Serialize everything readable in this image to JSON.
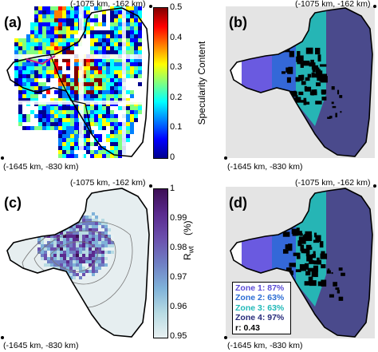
{
  "panels": {
    "a": {
      "label": "(a)",
      "top_coord": "(-1075 km, -162 km)",
      "bottom_coord": "(-1645 km, -830 km)"
    },
    "b": {
      "label": "(b)",
      "top_coord": "(-1075 km, -162 km)",
      "bottom_coord": "(-1645 km, -830 km)"
    },
    "c": {
      "label": "(c)",
      "top_coord": "(-1075 km, -162 km)",
      "bottom_coord": "(-1645 km, -830 km)"
    },
    "d": {
      "label": "(d)",
      "top_coord": "(-1075 km, -162 km)",
      "bottom_coord": "(-1645 km, -830 km)"
    }
  },
  "colorbar_specularity": {
    "title": "Specularity Content",
    "ticks": [
      "0.5",
      "0.4",
      "0.3",
      "0.2",
      "0.1",
      "0"
    ],
    "colormap": [
      "#00008f",
      "#0000ff",
      "#0080ff",
      "#00ffff",
      "#80ff80",
      "#ffff00",
      "#ff8000",
      "#ff0000",
      "#800000"
    ]
  },
  "colorbar_rwt": {
    "title_main": "R",
    "title_sub": "wt",
    "title_unit": "(%)",
    "ticks": [
      "1",
      "0.99",
      "0.98",
      "0.97",
      "0.96",
      "0.95"
    ],
    "colormap": [
      "#e8f1f2",
      "#b7dbe3",
      "#7fb2d9",
      "#6f7fc4",
      "#6b50ad",
      "#5a2a8e",
      "#3d0f55"
    ]
  },
  "legend": {
    "zones": [
      {
        "text": "Zone 1: 87%",
        "color": "#5a4bd6"
      },
      {
        "text": "Zone 2: 63%",
        "color": "#2b6cd4"
      },
      {
        "text": "Zone 3: 63%",
        "color": "#20b8b8"
      },
      {
        "text": "Zone 4: 97%",
        "color": "#262a7a"
      }
    ],
    "r_text": "r: 0.43"
  },
  "colors": {
    "background_gray": "#e4e4e4",
    "zone1": "#6a5ae0",
    "zone2": "#3468d8",
    "zone3": "#26b5b5",
    "zone4": "#4a4a8c",
    "outline": "#000000"
  }
}
